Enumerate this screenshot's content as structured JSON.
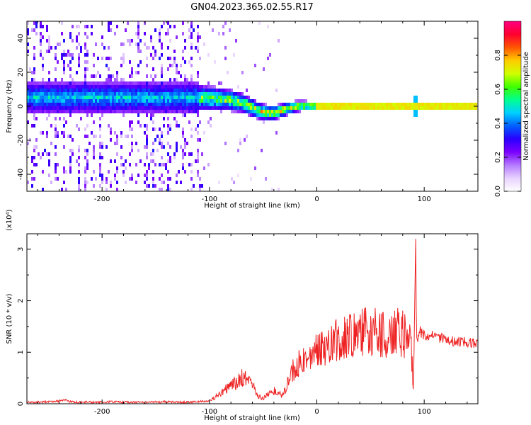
{
  "page": {
    "title": "GN04.2023.365.02.55.R17"
  },
  "colors": {
    "snr_line": "#ee2222",
    "axis": "#000000",
    "background": "#ffffff"
  },
  "chart_data": [
    {
      "type": "heatmap",
      "name": "spectrogram",
      "title": "",
      "xlabel": "Height of straight line (km)",
      "ylabel": "Frequency (Hz)",
      "xlim": [
        -270,
        150
      ],
      "ylim": [
        -50,
        50
      ],
      "xticks": [
        -200,
        -100,
        0,
        100
      ],
      "yticks": [
        -40,
        -20,
        0,
        20,
        40
      ],
      "xtick_labels": [
        "-200",
        "-100",
        "0",
        "100"
      ],
      "ytick_labels": [
        "-40",
        "-20",
        "0",
        "20",
        "40"
      ],
      "colorbar": {
        "label": "Normalized spectral amplitude",
        "range": [
          0,
          1
        ],
        "ticks": [
          0.0,
          0.2,
          0.4,
          0.6,
          0.8
        ],
        "tick_labels": [
          "0.0",
          "0.2",
          "0.4",
          "0.6",
          "0.8"
        ],
        "colormap": [
          "#ffffff",
          "#e8d2ff",
          "#b57aff",
          "#7a00ff",
          "#2a00ff",
          "#0060ff",
          "#00d0ff",
          "#00ff90",
          "#40ff00",
          "#d0ff00",
          "#ffcc00",
          "#ff5500",
          "#ff0030",
          "#ff0080"
        ]
      },
      "features": {
        "noise_region_x": [
          -270,
          -105
        ],
        "main_band_center_hz": 5,
        "tone_x_start": 0,
        "tone_frequency_hz": 0,
        "spike_x": 92
      }
    },
    {
      "type": "line",
      "name": "snr",
      "title": "",
      "xlabel": "Height of straight line (km)",
      "ylabel": "SNR (10 * v/v)",
      "yscale_label": "(x10⁴)",
      "xlim": [
        -270,
        150
      ],
      "ylim": [
        0,
        3.3
      ],
      "xticks": [
        -200,
        -100,
        0,
        100
      ],
      "yticks": [
        0,
        1,
        2,
        3
      ],
      "xtick_labels": [
        "-200",
        "-100",
        "0",
        "100"
      ],
      "ytick_labels": [
        "0",
        "1",
        "2",
        "3"
      ],
      "series": [
        {
          "x": [
            -270,
            -260,
            -250,
            -240,
            -235,
            -230,
            -220,
            -210,
            -200,
            -190,
            -180,
            -170,
            -160,
            -150,
            -140,
            -130,
            -120,
            -110,
            -105,
            -100,
            -95,
            -90,
            -85,
            -80,
            -75,
            -70,
            -66,
            -62,
            -58,
            -55,
            -50,
            -45,
            -40,
            -35,
            -32,
            -28,
            -25,
            -22,
            -20,
            -18,
            -15,
            -12,
            -10,
            -5,
            0,
            5,
            10,
            15,
            20,
            25,
            30,
            35,
            40,
            45,
            48,
            52,
            55,
            60,
            65,
            70,
            75,
            80,
            85,
            88,
            90,
            91,
            92,
            93,
            94,
            96,
            100,
            110,
            120,
            130,
            140,
            150
          ],
          "y": [
            0.03,
            0.03,
            0.04,
            0.05,
            0.08,
            0.04,
            0.03,
            0.03,
            0.03,
            0.04,
            0.03,
            0.03,
            0.03,
            0.03,
            0.04,
            0.03,
            0.03,
            0.04,
            0.05,
            0.06,
            0.12,
            0.2,
            0.28,
            0.35,
            0.4,
            0.5,
            0.55,
            0.45,
            0.3,
            0.15,
            0.1,
            0.2,
            0.25,
            0.2,
            0.15,
            0.35,
            0.45,
            0.7,
            0.5,
            0.8,
            0.75,
            0.9,
            0.85,
            1.0,
            1.05,
            1.1,
            1.15,
            1.2,
            1.25,
            1.3,
            1.35,
            1.3,
            1.35,
            1.45,
            1.4,
            1.3,
            1.4,
            1.35,
            1.3,
            1.3,
            1.4,
            1.35,
            1.3,
            1.0,
            0.3,
            1.6,
            3.2,
            1.2,
            1.3,
            1.4,
            1.35,
            1.3,
            1.25,
            1.2,
            1.2,
            1.15
          ]
        }
      ]
    }
  ]
}
